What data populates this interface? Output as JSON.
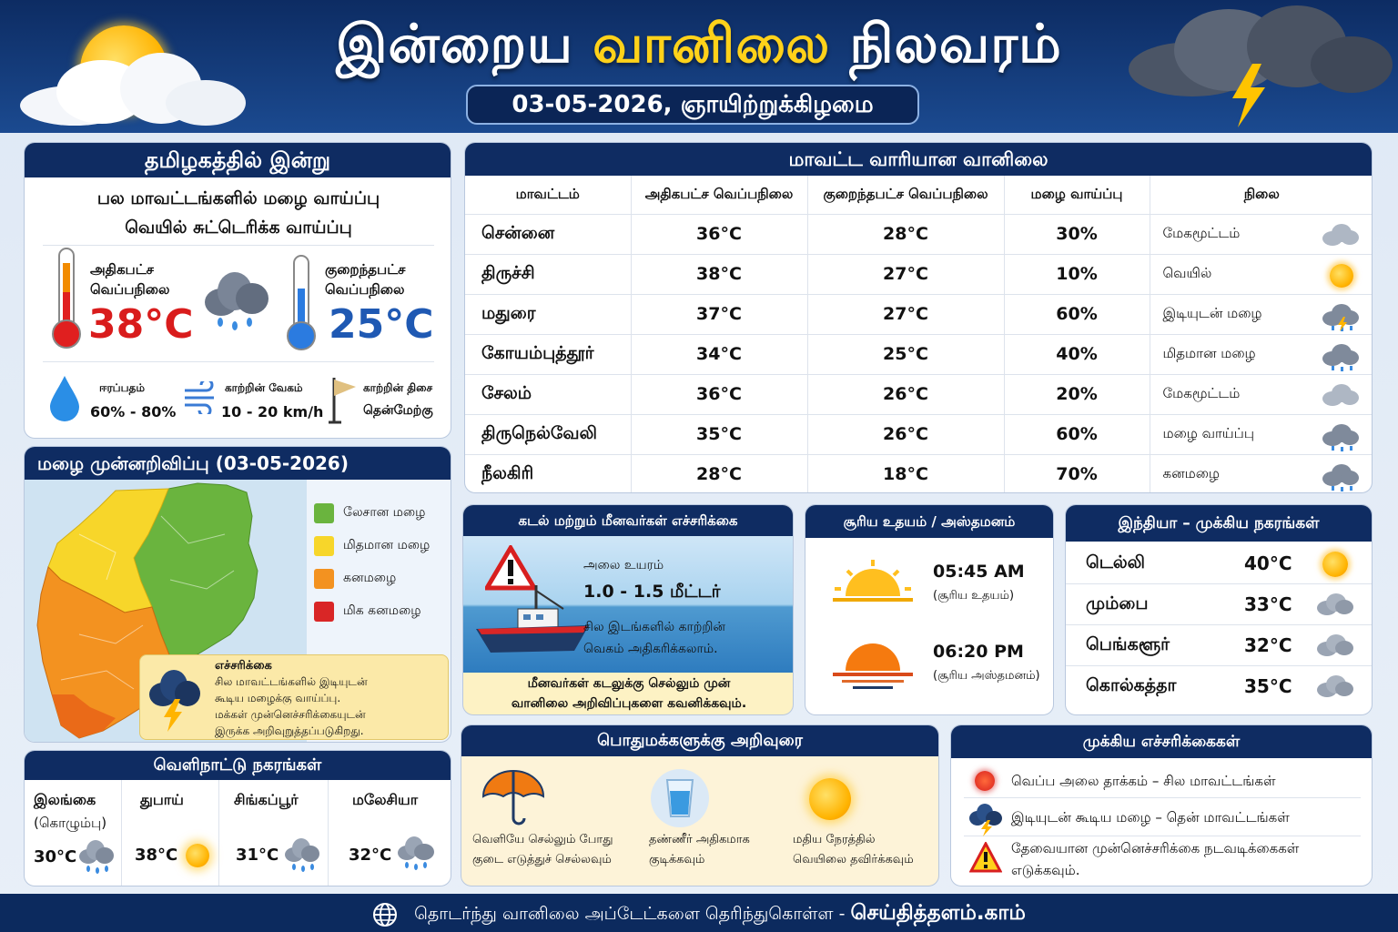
{
  "header": {
    "title_part1": "இன்றைய ",
    "title_part2": "வானிலை",
    "title_part3": " நிலவரம்",
    "date": "03-05-2026, ஞாயிற்றுக்கிழமை"
  },
  "today": {
    "title": "தமிழகத்தில் இன்று",
    "line1": "பல மாவட்டங்களில் மழை வாய்ப்பு",
    "line2": "வெயில் சுட்டெரிக்க வாய்ப்பு",
    "max_label_1": "அதிகபட்ச",
    "max_label_2": "வெப்பநிலை",
    "max_value": "38°C",
    "min_label_1": "குறைந்தபட்ச",
    "min_label_2": "வெப்பநிலை",
    "min_value": "25°C",
    "humidity_label": "ஈரப்பதம்",
    "humidity_value": "60% - 80%",
    "wind_speed_label": "காற்றின் வேகம்",
    "wind_speed_value": "10 - 20 km/h",
    "wind_dir_label": "காற்றின் திசை",
    "wind_dir_value": "தென்மேற்கு"
  },
  "rain_forecast": {
    "title": "மழை முன்னறிவிப்பு (03-05-2026)",
    "legend": [
      {
        "label": "லேசான மழை",
        "color": "#6ab43e"
      },
      {
        "label": "மிதமான மழை",
        "color": "#f7d62a"
      },
      {
        "label": "கனமழை",
        "color": "#f39220"
      },
      {
        "label": "மிக கனமழை",
        "color": "#d92626"
      }
    ],
    "warning_title": "எச்சரிக்கை",
    "warning_line1": "சில மாவட்டங்களில் இடியுடன்",
    "warning_line2": "கூடிய மழைக்கு வாய்ப்பு.",
    "warning_line3": "மக்கள் முன்னெச்சரிக்கையுடன்",
    "warning_line4": "இருக்க அறிவுறுத்தப்படுகிறது."
  },
  "foreign": {
    "title": "வெளிநாட்டு நகரங்கள்",
    "cities": [
      {
        "name": "இலங்கை",
        "sub": "(கொழும்பு)",
        "temp": "30°C",
        "icon": "rain-cloud-icon"
      },
      {
        "name": "துபாய்",
        "sub": "",
        "temp": "38°C",
        "icon": "sun-icon"
      },
      {
        "name": "சிங்கப்பூர்",
        "sub": "",
        "temp": "31°C",
        "icon": "rain-cloud-icon"
      },
      {
        "name": "மலேசியா",
        "sub": "",
        "temp": "32°C",
        "icon": "rain-cloud-icon"
      }
    ]
  },
  "districts": {
    "title": "மாவட்ட வாரியான வானிலை",
    "headers": [
      "மாவட்டம்",
      "அதிகபட்ச வெப்பநிலை",
      "குறைந்தபட்ச வெப்பநிலை",
      "மழை வாய்ப்பு",
      "நிலை"
    ],
    "rows": [
      {
        "name": "சென்னை",
        "max": "36°C",
        "min": "28°C",
        "rain": "30%",
        "cond": "மேகமூட்டம்",
        "icon": "cloud-icon"
      },
      {
        "name": "திருச்சி",
        "max": "38°C",
        "min": "27°C",
        "rain": "10%",
        "cond": "வெயில்",
        "icon": "sun-icon"
      },
      {
        "name": "மதுரை",
        "max": "37°C",
        "min": "27°C",
        "rain": "60%",
        "cond": "இடியுடன் மழை",
        "icon": "thunder-cloud-icon"
      },
      {
        "name": "கோயம்புத்தூர்",
        "max": "34°C",
        "min": "25°C",
        "rain": "40%",
        "cond": "மிதமான மழை",
        "icon": "rain-cloud-icon"
      },
      {
        "name": "சேலம்",
        "max": "36°C",
        "min": "26°C",
        "rain": "20%",
        "cond": "மேகமூட்டம்",
        "icon": "cloud-icon"
      },
      {
        "name": "திருநெல்வேலி",
        "max": "35°C",
        "min": "26°C",
        "rain": "60%",
        "cond": "மழை வாய்ப்பு",
        "icon": "rain-cloud-icon"
      },
      {
        "name": "நீலகிரி",
        "max": "28°C",
        "min": "18°C",
        "rain": "70%",
        "cond": "கனமழை",
        "icon": "heavy-rain-cloud-icon"
      }
    ]
  },
  "sea": {
    "title": "கடல் மற்றும் மீனவர்கள் எச்சரிக்கை",
    "wave_label": "அலை உயரம்",
    "wave_value": "1.0 - 1.5 மீட்டர்",
    "note_line1": "சில இடங்களில் காற்றின்",
    "note_line2": "வெகம் அதிகரிக்கலாம்.",
    "advice_line1": "மீனவர்கள் கடலுக்கு செல்லும் முன்",
    "advice_line2": "வானிலை அறிவிப்புகளை கவனிக்கவும்."
  },
  "sun_times": {
    "title": "சூரிய உதயம் / அஸ்தமனம்",
    "sunrise": "05:45 AM",
    "sunrise_label": "(சூரிய உதயம்)",
    "sunset": "06:20 PM",
    "sunset_label": "(சூரிய அஸ்தமனம்)"
  },
  "india": {
    "title": "இந்தியா – முக்கிய நகரங்கள்",
    "cities": [
      {
        "name": "டெல்லி",
        "temp": "40°C",
        "icon": "sun-icon"
      },
      {
        "name": "மும்பை",
        "temp": "33°C",
        "icon": "cloud-icon"
      },
      {
        "name": "பெங்களூர்",
        "temp": "32°C",
        "icon": "cloud-icon"
      },
      {
        "name": "கொல்கத்தா",
        "temp": "35°C",
        "icon": "cloud-icon"
      }
    ]
  },
  "advice": {
    "title": "பொதுமக்களுக்கு அறிவுரை",
    "items": [
      {
        "line1": "வெளியே செல்லும் போது",
        "line2": "குடை எடுத்துச் செல்லவும்",
        "icon": "umbrella-icon"
      },
      {
        "line1": "தண்ணீர் அதிகமாக",
        "line2": "குடிக்கவும்",
        "icon": "water-glass-icon"
      },
      {
        "line1": "மதிய நேரத்தில்",
        "line2": "வெயிலை தவிர்க்கவும்",
        "icon": "sun-icon"
      }
    ]
  },
  "warnings": {
    "title": "முக்கிய எச்சரிக்கைகள்",
    "items": [
      {
        "text1": "வெப்ப அலை தாக்கம் – சில மாவட்டங்கள்",
        "text2": "",
        "icon": "heat-icon"
      },
      {
        "text1": "இடியுடன் கூடிய மழை – தென் மாவட்டங்கள்",
        "text2": "",
        "icon": "thunder-cloud-icon"
      },
      {
        "text1": "தேவையான முன்னெச்சரிக்கை நடவடிக்கைகள்",
        "text2": "எடுக்கவும்.",
        "icon": "warning-triangle-icon"
      }
    ]
  },
  "footer": {
    "text": "தொடர்ந்து வானிலை அப்டேட்களை தெரிந்துகொள்ள - ",
    "site": "செய்தித்தளம்.காம்"
  }
}
